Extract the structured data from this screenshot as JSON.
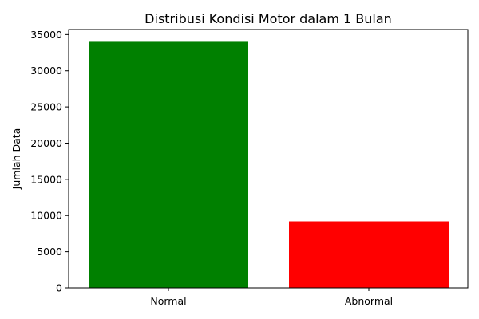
{
  "chart_data": {
    "type": "bar",
    "title": "Distribusi Kondisi Motor dalam 1 Bulan",
    "xlabel": "",
    "ylabel": "Jumlah Data",
    "categories": [
      "Normal",
      "Abnormal"
    ],
    "values": [
      34000,
      9200
    ],
    "bar_colors": [
      "#008000",
      "#ff0000"
    ],
    "ylim": [
      0,
      35700
    ],
    "yticks": [
      0,
      5000,
      10000,
      15000,
      20000,
      25000,
      30000,
      35000
    ],
    "grid": false,
    "legend": "none"
  }
}
